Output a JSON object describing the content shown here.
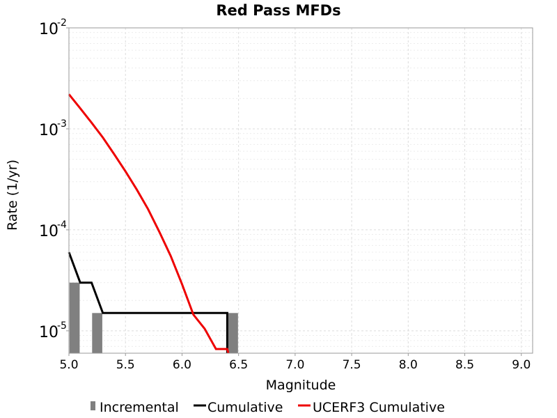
{
  "chart_data": {
    "type": "line",
    "title": "Red Pass MFDs",
    "xlabel": "Magnitude",
    "ylabel": "Rate (1/yr)",
    "xlim": [
      5.0,
      9.1
    ],
    "ylim": [
      6e-06,
      0.01
    ],
    "yscale": "log",
    "grid": true,
    "legend_position": "bottom",
    "x_ticks": [
      "5.0",
      "5.5",
      "6.0",
      "6.5",
      "7.0",
      "7.5",
      "8.0",
      "8.5",
      "9.0"
    ],
    "y_ticks": [
      {
        "value": 1e-05,
        "base": "10",
        "exp": "-5"
      },
      {
        "value": 0.0001,
        "base": "10",
        "exp": "-4"
      },
      {
        "value": 0.001,
        "base": "10",
        "exp": "-3"
      },
      {
        "value": 0.01,
        "base": "10",
        "exp": "-2"
      }
    ],
    "series": [
      {
        "name": "Incremental",
        "kind": "bar",
        "color": "#808080",
        "bar_width": 0.09,
        "x": [
          5.05,
          5.25,
          6.45
        ],
        "y": [
          3e-05,
          1.5e-05,
          1.5e-05
        ]
      },
      {
        "name": "Cumulative",
        "kind": "line",
        "color": "#000000",
        "x": [
          5.0,
          5.1,
          5.2,
          5.3,
          6.4,
          6.4
        ],
        "y": [
          6e-05,
          3e-05,
          3e-05,
          1.5e-05,
          1.5e-05,
          6e-06
        ]
      },
      {
        "name": "UCERF3 Cumulative",
        "kind": "line",
        "color": "#ee0000",
        "x": [
          5.0,
          5.1,
          5.2,
          5.3,
          5.4,
          5.5,
          5.6,
          5.7,
          5.8,
          5.9,
          6.0,
          6.1,
          6.2,
          6.3,
          6.4,
          6.41
        ],
        "y": [
          0.0022,
          0.0016,
          0.00115,
          0.00082,
          0.00056,
          0.00038,
          0.00025,
          0.00016,
          9.5e-05,
          5.5e-05,
          2.9e-05,
          1.45e-05,
          1.05e-05,
          6.6e-06,
          6.6e-06,
          6e-06
        ]
      }
    ]
  }
}
